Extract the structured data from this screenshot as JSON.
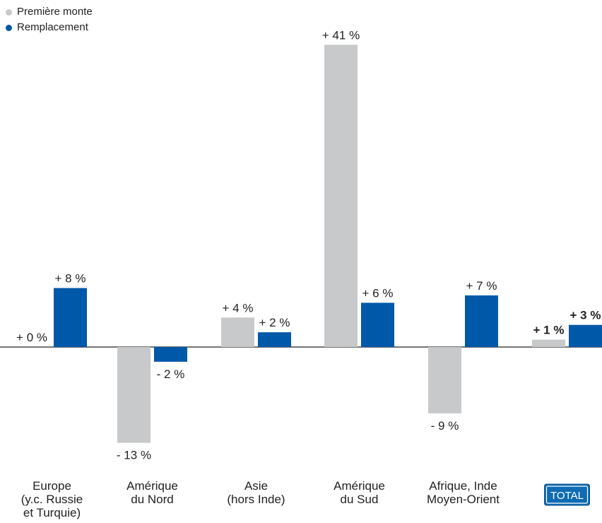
{
  "legend": {
    "first": "Première monte",
    "replacement": "Remplacement"
  },
  "colors": {
    "first": "#c8c9cb",
    "replacement": "#0058a8",
    "axis": "#222222",
    "total_badge": "#0f6bb3"
  },
  "chart_data": {
    "type": "bar",
    "categories": [
      [
        "Europe",
        "(y.c. Russie",
        "et Turquie)"
      ],
      [
        "Amérique",
        "du Nord"
      ],
      [
        "Asie",
        "(hors Inde)"
      ],
      [
        "Amérique",
        "du Sud"
      ],
      [
        "Afrique, Inde",
        "Moyen-Orient"
      ],
      [
        "TOTAL"
      ]
    ],
    "series": [
      {
        "name": "Première monte",
        "values": [
          0,
          -13,
          4,
          41,
          -9,
          1
        ],
        "labels": [
          "+ 0 %",
          "- 13 %",
          "+ 4 %",
          "+ 41 %",
          "- 9 %",
          "+ 1 %"
        ]
      },
      {
        "name": "Remplacement",
        "values": [
          8,
          -2,
          2,
          6,
          7,
          3
        ],
        "labels": [
          "+ 8 %",
          "- 2 %",
          "+ 2 %",
          "+ 6 %",
          "+ 7 %",
          "+ 3 %"
        ]
      }
    ],
    "highlight_last_category": true,
    "ylim": [
      -13,
      41
    ],
    "grid": false,
    "legend_position": "top-left"
  }
}
